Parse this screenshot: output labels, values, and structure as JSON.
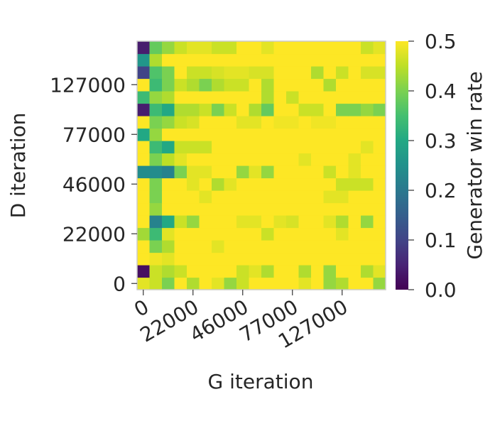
{
  "chart_data": {
    "type": "heatmap",
    "xlabel": "G iteration",
    "ylabel": "D iteration",
    "x_tick_labels": [
      "0",
      "22000",
      "46000",
      "77000",
      "127000"
    ],
    "y_tick_labels": [
      "0",
      "22000",
      "46000",
      "77000",
      "127000"
    ],
    "colorbar": {
      "label": "Generator win rate",
      "colormap": "viridis",
      "range": [
        0.0,
        0.5
      ],
      "tick_labels": [
        "0.0",
        "0.1",
        "0.2",
        "0.3",
        "0.4",
        "0.5"
      ]
    },
    "grid": false,
    "note_rows": "row 0 = bottom (D iteration 0), row 19 = top",
    "values": [
      [
        0.48,
        0.46,
        0.4,
        0.5,
        0.44,
        0.5,
        0.48,
        0.42,
        0.46,
        0.5,
        0.5,
        0.5,
        0.5,
        0.48,
        0.5,
        0.42,
        0.44,
        0.5,
        0.5,
        0.42
      ],
      [
        0.02,
        0.46,
        0.44,
        0.46,
        0.5,
        0.5,
        0.5,
        0.5,
        0.46,
        0.48,
        0.44,
        0.5,
        0.5,
        0.44,
        0.5,
        0.42,
        0.5,
        0.5,
        0.44,
        0.48
      ],
      [
        0.5,
        0.49,
        0.48,
        0.5,
        0.5,
        0.5,
        0.5,
        0.5,
        0.5,
        0.5,
        0.5,
        0.5,
        0.5,
        0.5,
        0.5,
        0.5,
        0.5,
        0.5,
        0.5,
        0.5
      ],
      [
        0.5,
        0.4,
        0.44,
        0.5,
        0.5,
        0.5,
        0.48,
        0.5,
        0.5,
        0.5,
        0.5,
        0.5,
        0.5,
        0.5,
        0.5,
        0.5,
        0.5,
        0.5,
        0.5,
        0.5
      ],
      [
        0.43,
        0.34,
        0.48,
        0.5,
        0.5,
        0.5,
        0.5,
        0.5,
        0.5,
        0.5,
        0.46,
        0.5,
        0.5,
        0.5,
        0.5,
        0.5,
        0.48,
        0.5,
        0.5,
        0.5
      ],
      [
        0.5,
        0.22,
        0.3,
        0.46,
        0.42,
        0.5,
        0.5,
        0.5,
        0.48,
        0.48,
        0.5,
        0.48,
        0.47,
        0.5,
        0.5,
        0.48,
        0.44,
        0.5,
        0.42,
        0.5
      ],
      [
        0.5,
        0.42,
        0.5,
        0.5,
        0.5,
        0.5,
        0.5,
        0.5,
        0.5,
        0.5,
        0.5,
        0.5,
        0.5,
        0.5,
        0.5,
        0.5,
        0.5,
        0.5,
        0.5,
        0.5
      ],
      [
        0.5,
        0.4,
        0.5,
        0.5,
        0.5,
        0.48,
        0.5,
        0.5,
        0.5,
        0.5,
        0.5,
        0.5,
        0.5,
        0.5,
        0.5,
        0.48,
        0.48,
        0.5,
        0.5,
        0.5
      ],
      [
        0.5,
        0.4,
        0.5,
        0.5,
        0.48,
        0.5,
        0.44,
        0.48,
        0.5,
        0.5,
        0.5,
        0.5,
        0.5,
        0.5,
        0.5,
        0.5,
        0.46,
        0.46,
        0.46,
        0.5
      ],
      [
        0.24,
        0.24,
        0.22,
        0.4,
        0.48,
        0.48,
        0.5,
        0.5,
        0.42,
        0.48,
        0.42,
        0.5,
        0.5,
        0.5,
        0.5,
        0.46,
        0.5,
        0.48,
        0.5,
        0.5
      ],
      [
        0.5,
        0.4,
        0.45,
        0.48,
        0.5,
        0.5,
        0.5,
        0.5,
        0.5,
        0.5,
        0.5,
        0.5,
        0.5,
        0.48,
        0.5,
        0.5,
        0.5,
        0.48,
        0.5,
        0.5
      ],
      [
        0.5,
        0.34,
        0.3,
        0.46,
        0.46,
        0.46,
        0.5,
        0.5,
        0.5,
        0.5,
        0.5,
        0.5,
        0.5,
        0.5,
        0.5,
        0.5,
        0.5,
        0.5,
        0.48,
        0.5
      ],
      [
        0.3,
        0.42,
        0.5,
        0.5,
        0.5,
        0.5,
        0.5,
        0.5,
        0.5,
        0.5,
        0.5,
        0.5,
        0.5,
        0.5,
        0.5,
        0.5,
        0.5,
        0.5,
        0.5,
        0.5
      ],
      [
        0.5,
        0.4,
        0.42,
        0.46,
        0.47,
        0.5,
        0.5,
        0.5,
        0.48,
        0.48,
        0.5,
        0.49,
        0.49,
        0.5,
        0.49,
        0.49,
        0.5,
        0.5,
        0.5,
        0.5
      ],
      [
        0.04,
        0.34,
        0.3,
        0.44,
        0.44,
        0.46,
        0.4,
        0.46,
        0.5,
        0.44,
        0.38,
        0.5,
        0.5,
        0.46,
        0.46,
        0.5,
        0.4,
        0.4,
        0.42,
        0.4
      ],
      [
        0.34,
        0.42,
        0.44,
        0.5,
        0.5,
        0.5,
        0.5,
        0.5,
        0.5,
        0.5,
        0.44,
        0.5,
        0.46,
        0.5,
        0.5,
        0.5,
        0.5,
        0.5,
        0.5,
        0.5
      ],
      [
        0.5,
        0.34,
        0.4,
        0.46,
        0.44,
        0.4,
        0.44,
        0.46,
        0.46,
        0.5,
        0.44,
        0.5,
        0.5,
        0.5,
        0.5,
        0.44,
        0.5,
        0.5,
        0.5,
        0.5
      ],
      [
        0.1,
        0.36,
        0.4,
        0.5,
        0.46,
        0.46,
        0.47,
        0.48,
        0.48,
        0.47,
        0.47,
        0.5,
        0.5,
        0.5,
        0.44,
        0.5,
        0.46,
        0.5,
        0.47,
        0.47
      ],
      [
        0.26,
        0.44,
        0.5,
        0.5,
        0.5,
        0.5,
        0.5,
        0.5,
        0.5,
        0.5,
        0.5,
        0.5,
        0.5,
        0.5,
        0.5,
        0.5,
        0.5,
        0.5,
        0.5,
        0.5
      ],
      [
        0.04,
        0.38,
        0.42,
        0.46,
        0.48,
        0.48,
        0.46,
        0.46,
        0.5,
        0.5,
        0.48,
        0.5,
        0.5,
        0.5,
        0.5,
        0.5,
        0.5,
        0.5,
        0.46,
        0.48
      ]
    ]
  }
}
